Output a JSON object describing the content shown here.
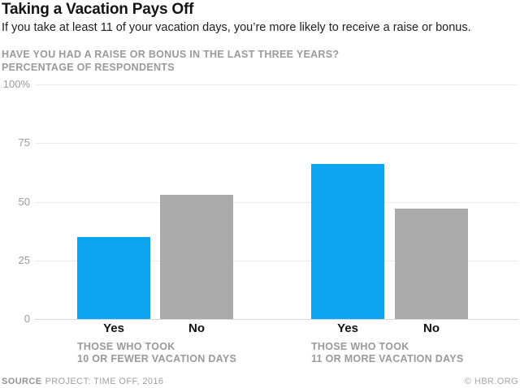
{
  "header": {
    "title": "Taking a Vacation Pays Off",
    "subtitle": "If you take at least 11 of your vacation days, you’re more likely to receive a raise or bonus."
  },
  "chart": {
    "question_line1": "HAVE YOU HAD A RAISE OR BONUS IN THE LAST THREE YEARS?",
    "question_line2": "PERCENTAGE OF RESPONDENTS"
  },
  "chart_data": {
    "type": "bar",
    "title": "Have you had a raise or bonus in the last three years?",
    "subtitle": "Percentage of respondents",
    "ylim": [
      0,
      100
    ],
    "yticks": [
      0,
      25,
      50,
      75,
      100
    ],
    "ytick_labels": [
      "0",
      "25",
      "50",
      "75",
      "100%"
    ],
    "grid": true,
    "legend": "none",
    "colors": {
      "yes_bar": "#0da5f0",
      "no_bar": "#ababab"
    },
    "groups": [
      {
        "label_line1": "THOSE WHO TOOK",
        "label_line2": "10 OR FEWER VACATION DAYS",
        "bars": [
          {
            "category": "Yes",
            "value": 35,
            "color": "#0da5f0"
          },
          {
            "category": "No",
            "value": 53,
            "color": "#ababab"
          }
        ]
      },
      {
        "label_line1": "THOSE WHO TOOK",
        "label_line2": "11 OR MORE VACATION DAYS",
        "bars": [
          {
            "category": "Yes",
            "value": 66,
            "color": "#0da5f0"
          },
          {
            "category": "No",
            "value": 47,
            "color": "#ababab"
          }
        ]
      }
    ]
  },
  "footer": {
    "source_label": "SOURCE",
    "source_text": "PROJECT: TIME OFF, 2016",
    "copyright": "© HBR.ORG"
  }
}
